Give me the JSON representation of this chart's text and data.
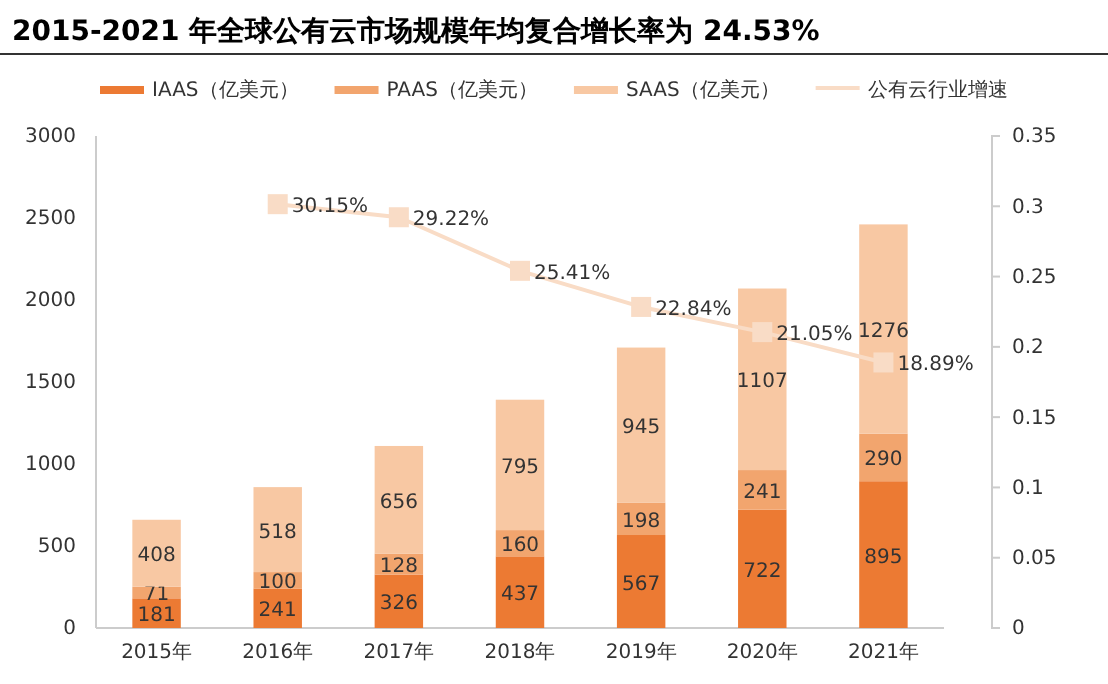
{
  "chart_data": {
    "type": "bar",
    "title": "2015-2021 年全球公有云市场规模年均复合增长率为 24.53%",
    "categories": [
      "2015年",
      "2016年",
      "2017年",
      "2018年",
      "2019年",
      "2020年",
      "2021年"
    ],
    "stacked": true,
    "data_labels": true,
    "legend": "top",
    "grid": false,
    "ylim": [
      0,
      3000
    ],
    "yticks": [
      0,
      500,
      1000,
      1500,
      2000,
      2500,
      3000
    ],
    "y2lim": [
      0,
      0.35
    ],
    "y2ticks": [
      0,
      0.05,
      0.1,
      0.15,
      0.2,
      0.25,
      0.3,
      0.35
    ],
    "series": [
      {
        "name": "IAAS（亿美元）",
        "color": "#ec7a33",
        "values": [
          181,
          241,
          326,
          437,
          567,
          722,
          895
        ]
      },
      {
        "name": "PAAS（亿美元）",
        "color": "#f2a56e",
        "values": [
          71,
          100,
          128,
          160,
          198,
          241,
          290
        ]
      },
      {
        "name": "SAAS（亿美元）",
        "color": "#f8c8a3",
        "values": [
          408,
          518,
          656,
          795,
          945,
          1107,
          1276
        ]
      },
      {
        "name": "公有云行业增速",
        "type": "line",
        "axis": "y2",
        "color": "#f9dcc6",
        "marker": "square",
        "line_style": "solid",
        "values": [
          null,
          0.3015,
          0.2922,
          0.2541,
          0.2284,
          0.2105,
          0.1889
        ],
        "value_labels": [
          null,
          "30.15%",
          "29.22%",
          "25.41%",
          "22.84%",
          "21.05%",
          "18.89%"
        ]
      }
    ]
  }
}
